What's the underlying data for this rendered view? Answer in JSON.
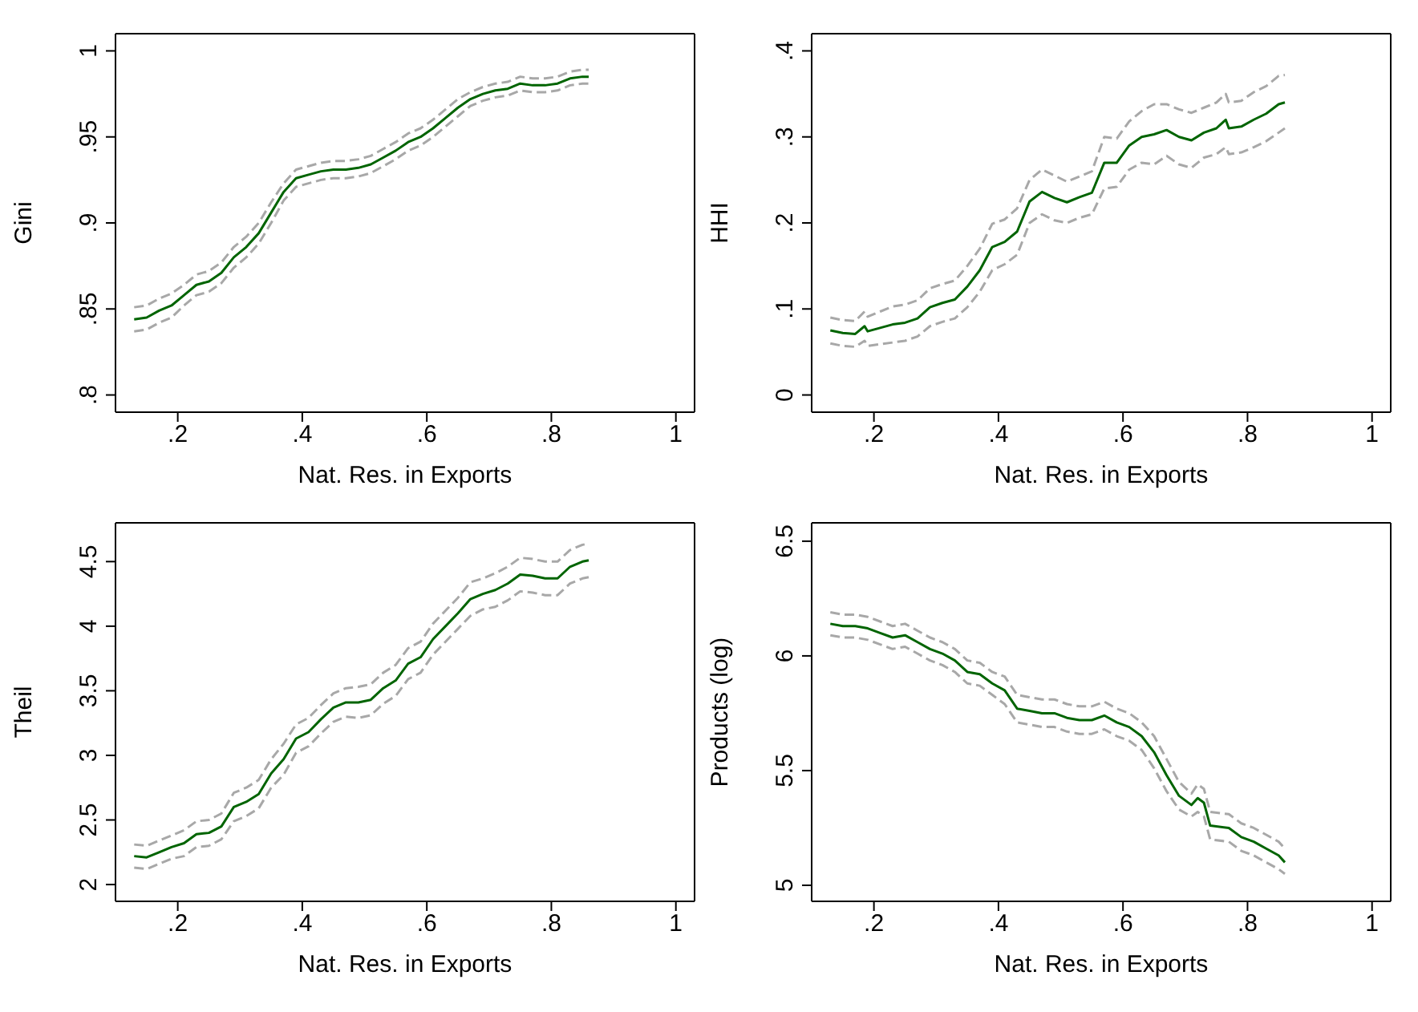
{
  "chart_data": [
    {
      "type": "line",
      "xlabel": "Nat. Res. in Exports",
      "ylabel": "Gini",
      "xlim": [
        0.1,
        1.03
      ],
      "ylim": [
        0.79,
        1.01
      ],
      "xticks": [
        {
          "value": 0.2,
          "label": ".2"
        },
        {
          "value": 0.4,
          "label": ".4"
        },
        {
          "value": 0.6,
          "label": ".6"
        },
        {
          "value": 0.8,
          "label": ".8"
        },
        {
          "value": 1,
          "label": "1"
        }
      ],
      "yticks": [
        {
          "value": 0.8,
          "label": ".8"
        },
        {
          "value": 0.85,
          "label": ".85"
        },
        {
          "value": 0.9,
          "label": ".9"
        },
        {
          "value": 0.95,
          "label": ".95"
        },
        1
      ],
      "x": [
        0.13,
        0.15,
        0.17,
        0.19,
        0.21,
        0.23,
        0.25,
        0.27,
        0.29,
        0.31,
        0.33,
        0.35,
        0.37,
        0.39,
        0.41,
        0.43,
        0.45,
        0.47,
        0.49,
        0.51,
        0.53,
        0.55,
        0.57,
        0.59,
        0.61,
        0.63,
        0.65,
        0.67,
        0.69,
        0.71,
        0.73,
        0.75,
        0.77,
        0.79,
        0.81,
        0.83,
        0.85,
        0.86
      ],
      "series": [
        {
          "color": "#a8a8a8",
          "line_style": "dashed",
          "values": [
            0.837,
            0.838,
            0.842,
            0.845,
            0.852,
            0.858,
            0.86,
            0.865,
            0.874,
            0.88,
            0.888,
            0.9,
            0.913,
            0.921,
            0.923,
            0.925,
            0.926,
            0.926,
            0.927,
            0.929,
            0.933,
            0.937,
            0.942,
            0.945,
            0.95,
            0.956,
            0.962,
            0.968,
            0.971,
            0.973,
            0.974,
            0.977,
            0.976,
            0.976,
            0.977,
            0.98,
            0.981,
            0.981
          ]
        },
        {
          "color": "#a8a8a8",
          "line_style": "dashed",
          "values": [
            0.851,
            0.852,
            0.856,
            0.859,
            0.864,
            0.87,
            0.872,
            0.877,
            0.886,
            0.892,
            0.9,
            0.912,
            0.923,
            0.931,
            0.933,
            0.935,
            0.936,
            0.936,
            0.937,
            0.939,
            0.943,
            0.947,
            0.952,
            0.955,
            0.96,
            0.966,
            0.972,
            0.976,
            0.979,
            0.981,
            0.982,
            0.985,
            0.984,
            0.984,
            0.985,
            0.988,
            0.989,
            0.989
          ]
        },
        {
          "color": "#006400",
          "line_style": "solid",
          "values": [
            0.844,
            0.845,
            0.849,
            0.852,
            0.858,
            0.864,
            0.866,
            0.871,
            0.88,
            0.886,
            0.894,
            0.906,
            0.918,
            0.926,
            0.928,
            0.93,
            0.931,
            0.931,
            0.932,
            0.934,
            0.938,
            0.942,
            0.947,
            0.95,
            0.955,
            0.961,
            0.967,
            0.972,
            0.975,
            0.977,
            0.978,
            0.981,
            0.98,
            0.98,
            0.981,
            0.984,
            0.985,
            0.985
          ]
        }
      ]
    },
    {
      "type": "line",
      "xlabel": "Nat. Res. in Exports",
      "ylabel": "HHI",
      "xlim": [
        0.1,
        1.03
      ],
      "ylim": [
        -0.02,
        0.42
      ],
      "xticks": [
        {
          "value": 0.2,
          "label": ".2"
        },
        {
          "value": 0.4,
          "label": ".4"
        },
        {
          "value": 0.6,
          "label": ".6"
        },
        {
          "value": 0.8,
          "label": ".8"
        },
        {
          "value": 1,
          "label": "1"
        }
      ],
      "yticks": [
        0,
        {
          "value": 0.1,
          "label": ".1"
        },
        {
          "value": 0.2,
          "label": ".2"
        },
        {
          "value": 0.3,
          "label": ".3"
        },
        {
          "value": 0.4,
          "label": ".4"
        }
      ],
      "x": [
        0.13,
        0.15,
        0.17,
        0.185,
        0.19,
        0.21,
        0.23,
        0.25,
        0.27,
        0.29,
        0.31,
        0.33,
        0.35,
        0.37,
        0.39,
        0.41,
        0.43,
        0.45,
        0.47,
        0.49,
        0.51,
        0.53,
        0.55,
        0.57,
        0.59,
        0.61,
        0.63,
        0.65,
        0.67,
        0.69,
        0.71,
        0.73,
        0.75,
        0.765,
        0.77,
        0.79,
        0.81,
        0.83,
        0.85,
        0.86
      ],
      "series": [
        {
          "color": "#a8a8a8",
          "line_style": "dashed",
          "values": [
            0.06,
            0.057,
            0.056,
            0.063,
            0.057,
            0.059,
            0.061,
            0.063,
            0.068,
            0.08,
            0.085,
            0.089,
            0.102,
            0.12,
            0.145,
            0.152,
            0.163,
            0.2,
            0.21,
            0.203,
            0.2,
            0.206,
            0.21,
            0.24,
            0.242,
            0.262,
            0.27,
            0.268,
            0.278,
            0.268,
            0.264,
            0.276,
            0.28,
            0.288,
            0.28,
            0.282,
            0.288,
            0.295,
            0.305,
            0.31
          ]
        },
        {
          "color": "#a8a8a8",
          "line_style": "dashed",
          "values": [
            0.09,
            0.087,
            0.086,
            0.097,
            0.091,
            0.097,
            0.103,
            0.105,
            0.11,
            0.124,
            0.129,
            0.133,
            0.15,
            0.17,
            0.199,
            0.204,
            0.217,
            0.25,
            0.262,
            0.255,
            0.248,
            0.254,
            0.26,
            0.3,
            0.298,
            0.318,
            0.33,
            0.338,
            0.338,
            0.332,
            0.328,
            0.334,
            0.34,
            0.35,
            0.34,
            0.342,
            0.352,
            0.359,
            0.371,
            0.372
          ]
        },
        {
          "color": "#006400",
          "line_style": "solid",
          "values": [
            0.075,
            0.072,
            0.071,
            0.08,
            0.074,
            0.078,
            0.082,
            0.084,
            0.089,
            0.102,
            0.107,
            0.111,
            0.126,
            0.145,
            0.172,
            0.178,
            0.19,
            0.225,
            0.236,
            0.229,
            0.224,
            0.23,
            0.235,
            0.27,
            0.27,
            0.29,
            0.3,
            0.303,
            0.308,
            0.3,
            0.296,
            0.305,
            0.31,
            0.32,
            0.31,
            0.312,
            0.32,
            0.327,
            0.338,
            0.34
          ]
        }
      ]
    },
    {
      "type": "line",
      "xlabel": "Nat. Res. in Exports",
      "ylabel": "Theil",
      "xlim": [
        0.1,
        1.03
      ],
      "ylim": [
        1.87,
        4.8
      ],
      "xticks": [
        {
          "value": 0.2,
          "label": ".2"
        },
        {
          "value": 0.4,
          "label": ".4"
        },
        {
          "value": 0.6,
          "label": ".6"
        },
        {
          "value": 0.8,
          "label": ".8"
        },
        {
          "value": 1,
          "label": "1"
        }
      ],
      "yticks": [
        2,
        2.5,
        3,
        3.5,
        4,
        4.5
      ],
      "x": [
        0.13,
        0.15,
        0.17,
        0.19,
        0.21,
        0.23,
        0.25,
        0.27,
        0.29,
        0.31,
        0.33,
        0.35,
        0.37,
        0.39,
        0.41,
        0.43,
        0.45,
        0.47,
        0.49,
        0.51,
        0.53,
        0.55,
        0.57,
        0.59,
        0.61,
        0.63,
        0.65,
        0.67,
        0.69,
        0.71,
        0.73,
        0.75,
        0.77,
        0.79,
        0.81,
        0.83,
        0.85,
        0.86
      ],
      "series": [
        {
          "color": "#a8a8a8",
          "line_style": "dashed",
          "values": [
            2.13,
            2.12,
            2.16,
            2.2,
            2.22,
            2.29,
            2.3,
            2.35,
            2.49,
            2.53,
            2.59,
            2.75,
            2.85,
            3.02,
            3.07,
            3.17,
            3.26,
            3.3,
            3.29,
            3.31,
            3.4,
            3.46,
            3.59,
            3.64,
            3.78,
            3.88,
            3.98,
            4.08,
            4.13,
            4.15,
            4.2,
            4.27,
            4.26,
            4.24,
            4.24,
            4.33,
            4.37,
            4.38
          ]
        },
        {
          "color": "#a8a8a8",
          "line_style": "dashed",
          "values": [
            2.31,
            2.3,
            2.34,
            2.38,
            2.42,
            2.49,
            2.5,
            2.55,
            2.71,
            2.75,
            2.81,
            2.97,
            3.09,
            3.24,
            3.29,
            3.39,
            3.48,
            3.52,
            3.53,
            3.55,
            3.64,
            3.7,
            3.83,
            3.88,
            4.02,
            4.12,
            4.22,
            4.34,
            4.37,
            4.41,
            4.46,
            4.53,
            4.52,
            4.5,
            4.5,
            4.59,
            4.63,
            4.64
          ]
        },
        {
          "color": "#006400",
          "line_style": "solid",
          "values": [
            2.22,
            2.21,
            2.25,
            2.29,
            2.32,
            2.39,
            2.4,
            2.45,
            2.6,
            2.64,
            2.7,
            2.86,
            2.97,
            3.13,
            3.18,
            3.28,
            3.37,
            3.41,
            3.41,
            3.43,
            3.52,
            3.58,
            3.71,
            3.76,
            3.9,
            4.0,
            4.1,
            4.21,
            4.25,
            4.28,
            4.33,
            4.4,
            4.39,
            4.37,
            4.37,
            4.46,
            4.5,
            4.51
          ]
        }
      ]
    },
    {
      "type": "line",
      "xlabel": "Nat. Res. in Exports",
      "ylabel": "Products (log)",
      "xlim": [
        0.1,
        1.03
      ],
      "ylim": [
        4.93,
        6.58
      ],
      "xticks": [
        {
          "value": 0.2,
          "label": ".2"
        },
        {
          "value": 0.4,
          "label": ".4"
        },
        {
          "value": 0.6,
          "label": ".6"
        },
        {
          "value": 0.8,
          "label": ".8"
        },
        {
          "value": 1,
          "label": "1"
        }
      ],
      "yticks": [
        5,
        5.5,
        6,
        6.5
      ],
      "x": [
        0.13,
        0.15,
        0.17,
        0.19,
        0.21,
        0.23,
        0.25,
        0.27,
        0.29,
        0.31,
        0.33,
        0.35,
        0.37,
        0.39,
        0.41,
        0.43,
        0.45,
        0.47,
        0.49,
        0.51,
        0.53,
        0.55,
        0.57,
        0.59,
        0.61,
        0.63,
        0.65,
        0.67,
        0.69,
        0.71,
        0.72,
        0.73,
        0.74,
        0.77,
        0.79,
        0.81,
        0.83,
        0.85,
        0.86
      ],
      "series": [
        {
          "color": "#a8a8a8",
          "line_style": "dashed",
          "values": [
            6.09,
            6.08,
            6.08,
            6.07,
            6.05,
            6.03,
            6.04,
            6.01,
            5.98,
            5.96,
            5.93,
            5.88,
            5.87,
            5.83,
            5.79,
            5.71,
            5.7,
            5.69,
            5.69,
            5.67,
            5.66,
            5.66,
            5.68,
            5.65,
            5.63,
            5.59,
            5.51,
            5.41,
            5.33,
            5.3,
            5.32,
            5.3,
            5.2,
            5.19,
            5.15,
            5.13,
            5.1,
            5.07,
            5.05
          ]
        },
        {
          "color": "#a8a8a8",
          "line_style": "dashed",
          "values": [
            6.19,
            6.18,
            6.18,
            6.17,
            6.15,
            6.13,
            6.14,
            6.11,
            6.08,
            6.06,
            6.03,
            5.98,
            5.97,
            5.93,
            5.91,
            5.83,
            5.82,
            5.81,
            5.81,
            5.79,
            5.78,
            5.78,
            5.8,
            5.77,
            5.75,
            5.71,
            5.65,
            5.55,
            5.45,
            5.4,
            5.44,
            5.42,
            5.32,
            5.31,
            5.27,
            5.25,
            5.22,
            5.19,
            5.16
          ]
        },
        {
          "color": "#006400",
          "line_style": "solid",
          "values": [
            6.14,
            6.13,
            6.13,
            6.12,
            6.1,
            6.08,
            6.09,
            6.06,
            6.03,
            6.01,
            5.98,
            5.93,
            5.92,
            5.88,
            5.85,
            5.77,
            5.76,
            5.75,
            5.75,
            5.73,
            5.72,
            5.72,
            5.74,
            5.71,
            5.69,
            5.65,
            5.58,
            5.48,
            5.39,
            5.35,
            5.38,
            5.36,
            5.26,
            5.25,
            5.21,
            5.19,
            5.16,
            5.13,
            5.1
          ]
        }
      ]
    }
  ]
}
